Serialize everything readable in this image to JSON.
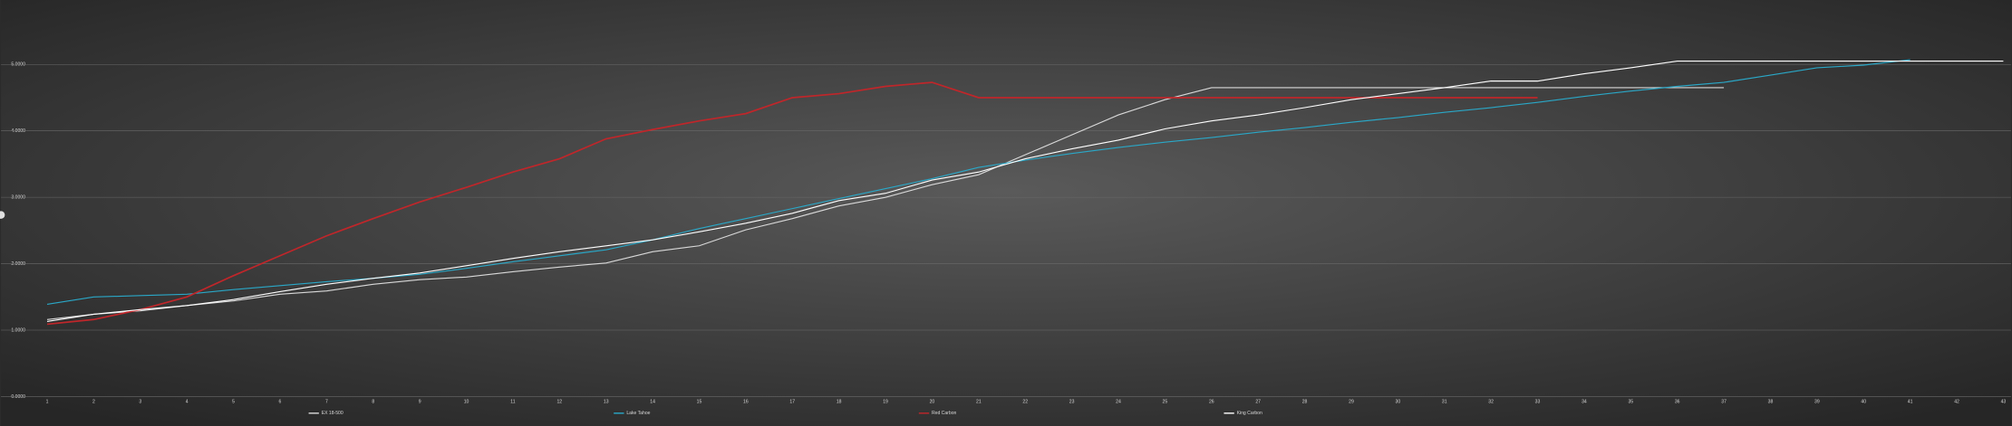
{
  "chart_data": {
    "type": "line",
    "categories": [
      "1",
      "2",
      "3",
      "4",
      "5",
      "6",
      "7",
      "8",
      "9",
      "10",
      "11",
      "12",
      "13",
      "14",
      "15",
      "16",
      "17",
      "18",
      "19",
      "20",
      "21",
      "22",
      "23",
      "24",
      "25",
      "26",
      "27",
      "28",
      "29",
      "30",
      "31",
      "32",
      "33",
      "34",
      "35",
      "36",
      "37",
      "38",
      "39",
      "40",
      "41",
      "42",
      "43"
    ],
    "ylim": [
      0,
      5.2
    ],
    "yticks": [
      {
        "value": 0,
        "label": "0.0000"
      },
      {
        "value": 1,
        "label": "1.0000"
      },
      {
        "value": 2,
        "label": "2.0000"
      },
      {
        "value": 3,
        "label": "3.0000"
      },
      {
        "value": 4,
        "label": "4.0000"
      },
      {
        "value": 5,
        "label": "5.0000"
      }
    ],
    "grid": true,
    "legend": "bottom",
    "series": [
      {
        "name": "EX 18-500",
        "color": "#d9d9d9",
        "values": [
          1.16,
          1.24,
          1.29,
          1.37,
          1.44,
          1.54,
          1.59,
          1.69,
          1.76,
          1.8,
          1.88,
          1.95,
          2.01,
          2.18,
          2.27,
          2.51,
          2.68,
          2.87,
          3.0,
          3.19,
          3.34,
          3.64,
          3.94,
          4.24,
          4.47,
          4.65,
          4.65,
          4.65,
          4.65,
          4.65,
          4.65,
          4.65,
          4.65,
          4.65,
          4.65,
          4.65,
          4.65,
          null,
          null,
          null,
          null,
          null,
          null
        ]
      },
      {
        "name": "Lake Tahoe",
        "color": "#2aa8c8",
        "values": [
          1.39,
          1.5,
          1.52,
          1.54,
          1.61,
          1.67,
          1.73,
          1.78,
          1.84,
          1.93,
          2.03,
          2.12,
          2.21,
          2.36,
          2.53,
          2.68,
          2.83,
          2.98,
          3.13,
          3.28,
          3.45,
          3.56,
          3.66,
          3.75,
          3.83,
          3.9,
          3.98,
          4.05,
          4.13,
          4.2,
          4.28,
          4.35,
          4.43,
          4.52,
          4.6,
          4.67,
          4.73,
          4.84,
          4.95,
          4.99,
          5.07,
          null,
          null
        ]
      },
      {
        "name": "Red Carbon",
        "color": "#c0262a",
        "values": [
          1.09,
          1.16,
          1.31,
          1.5,
          1.82,
          2.12,
          2.42,
          2.68,
          2.93,
          3.15,
          3.38,
          3.58,
          3.88,
          4.02,
          4.15,
          4.26,
          4.5,
          4.56,
          4.67,
          4.73,
          4.5,
          4.5,
          4.5,
          4.5,
          4.5,
          4.5,
          4.5,
          4.5,
          4.5,
          4.5,
          4.5,
          4.5,
          4.5,
          null,
          null,
          null,
          null,
          null,
          null,
          null,
          null,
          null,
          null
        ]
      },
      {
        "name": "King Carbon",
        "color": "#ffffff",
        "values": [
          1.13,
          1.24,
          1.31,
          1.37,
          1.46,
          1.58,
          1.69,
          1.78,
          1.86,
          1.97,
          2.08,
          2.18,
          2.27,
          2.36,
          2.48,
          2.61,
          2.76,
          2.95,
          3.06,
          3.26,
          3.38,
          3.58,
          3.73,
          3.86,
          4.03,
          4.15,
          4.24,
          4.35,
          4.47,
          4.56,
          4.65,
          4.75,
          4.75,
          4.86,
          4.95,
          5.05,
          5.05,
          5.05,
          5.05,
          5.05,
          5.05,
          5.05,
          5.05
        ]
      }
    ]
  }
}
